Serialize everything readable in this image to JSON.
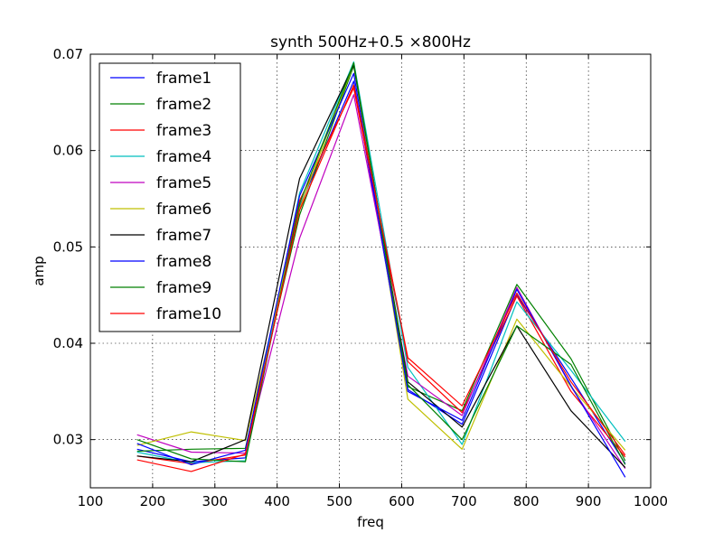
{
  "chart_data": {
    "type": "line",
    "title": "synth 500Hz+0.5 ×800Hz",
    "xlabel": "freq",
    "ylabel": "amp",
    "xlim": [
      100,
      1000
    ],
    "ylim": [
      0.025,
      0.07
    ],
    "xticks": [
      "100",
      "200",
      "300",
      "400",
      "500",
      "600",
      "700",
      "800",
      "900",
      "1000"
    ],
    "yticks": [
      "0.03",
      "0.04",
      "0.05",
      "0.06",
      "0.07"
    ],
    "grid": true,
    "legend_position": "top-left",
    "x": [
      175,
      262,
      349,
      436,
      523,
      610,
      697,
      785,
      872,
      959
    ],
    "series": [
      {
        "name": "frame1",
        "color": "#0000ff",
        "values": [
          0.029,
          0.0277,
          0.0281,
          0.0542,
          0.0672,
          0.0352,
          0.0316,
          0.045,
          0.0364,
          0.0275
        ]
      },
      {
        "name": "frame2",
        "color": "#008000",
        "values": [
          0.0288,
          0.029,
          0.0291,
          0.0533,
          0.0688,
          0.0355,
          0.033,
          0.0461,
          0.0384,
          0.0278
        ]
      },
      {
        "name": "frame3",
        "color": "#ff0000",
        "values": [
          0.0283,
          0.0275,
          0.0284,
          0.0548,
          0.0665,
          0.0381,
          0.0328,
          0.0449,
          0.035,
          0.0282
        ]
      },
      {
        "name": "frame4",
        "color": "#00bfbf",
        "values": [
          0.0287,
          0.0276,
          0.0278,
          0.0556,
          0.0692,
          0.0375,
          0.0295,
          0.0443,
          0.0372,
          0.0298
        ]
      },
      {
        "name": "frame5",
        "color": "#bf00bf",
        "values": [
          0.0305,
          0.0287,
          0.0286,
          0.0509,
          0.0658,
          0.0366,
          0.0325,
          0.0458,
          0.0355,
          0.027
        ]
      },
      {
        "name": "frame6",
        "color": "#bfbf00",
        "values": [
          0.0294,
          0.0308,
          0.0299,
          0.054,
          0.069,
          0.0342,
          0.029,
          0.0425,
          0.0355,
          0.0289
        ]
      },
      {
        "name": "frame7",
        "color": "#000000",
        "values": [
          0.0283,
          0.0277,
          0.03,
          0.0571,
          0.0689,
          0.036,
          0.0313,
          0.0418,
          0.033,
          0.0271
        ]
      },
      {
        "name": "frame8",
        "color": "#0000ff",
        "values": [
          0.0296,
          0.0274,
          0.0289,
          0.0553,
          0.068,
          0.035,
          0.032,
          0.0456,
          0.0356,
          0.0261
        ]
      },
      {
        "name": "frame9",
        "color": "#008000",
        "values": [
          0.03,
          0.028,
          0.0277,
          0.0545,
          0.0691,
          0.0357,
          0.03,
          0.0418,
          0.0378,
          0.0274
        ]
      },
      {
        "name": "frame10",
        "color": "#ff0000",
        "values": [
          0.0279,
          0.0267,
          0.0285,
          0.0538,
          0.0668,
          0.0385,
          0.0335,
          0.0452,
          0.036,
          0.0284
        ]
      }
    ]
  }
}
